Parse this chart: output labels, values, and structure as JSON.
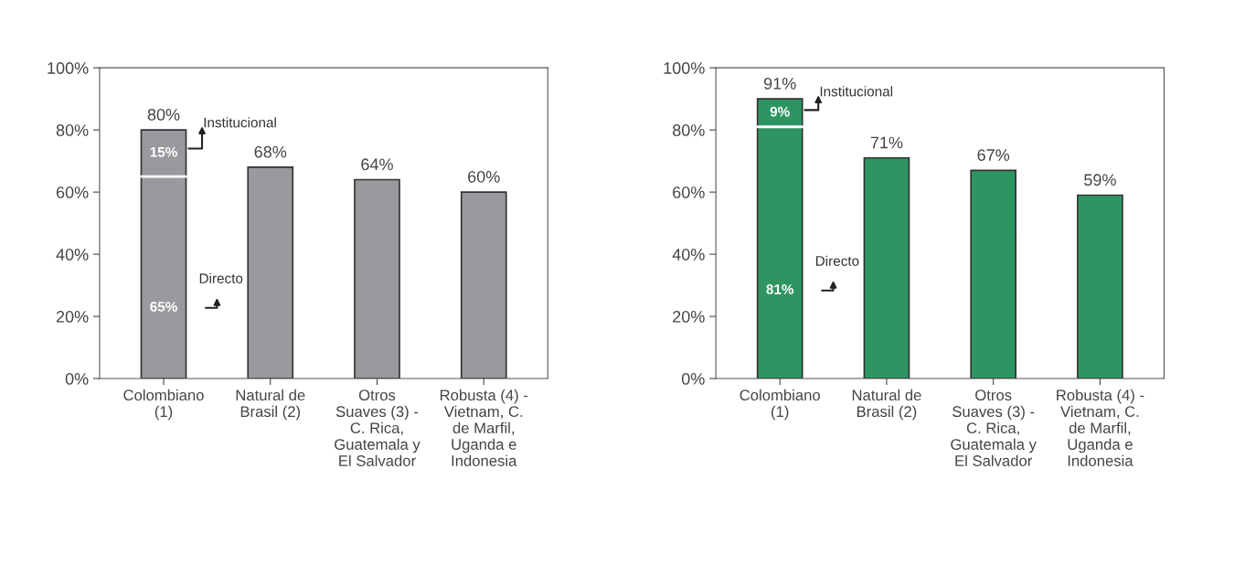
{
  "chart_data": [
    {
      "type": "bar",
      "stacked": true,
      "categories": [
        "Colombiano\n(1)",
        "Natural de\nBrasil (2)",
        "Otros\nSuaves (3) -\nC. Rica,\nGuatemala y\nEl Salvador",
        "Robusta (4) -\nVietnam, C.\nde Marfil,\nUganda e\nIndonesia"
      ],
      "series": [
        {
          "name": "Directo",
          "color": "#9a9a9e",
          "values": [
            65,
            68,
            64,
            60
          ],
          "value_labels": [
            "65%",
            null,
            null,
            null
          ]
        },
        {
          "name": "Institucional",
          "color": "#9a9a9e",
          "values": [
            15,
            null,
            null,
            null
          ],
          "value_labels": [
            "15%",
            null,
            null,
            null
          ]
        }
      ],
      "totals": [
        "80%",
        "68%",
        "64%",
        "60%"
      ],
      "ylim": [
        0,
        100
      ],
      "yticks": [
        {
          "value": 0,
          "label": "0%"
        },
        {
          "value": 20,
          "label": "20%"
        },
        {
          "value": 40,
          "label": "40%"
        },
        {
          "value": 60,
          "label": "60%"
        },
        {
          "value": 80,
          "label": "80%"
        },
        {
          "value": 100,
          "label": "100%"
        }
      ],
      "grid": false,
      "legend": false
    },
    {
      "type": "bar",
      "stacked": true,
      "categories": [
        "Colombiano\n(1)",
        "Natural de\nBrasil (2)",
        "Otros\nSuaves (3) -\nC. Rica,\nGuatemala y\nEl Salvador",
        "Robusta (4) -\nVietnam, C.\nde Marfil,\nUganda e\nIndonesia"
      ],
      "series": [
        {
          "name": "Directo",
          "color": "#2e9562",
          "values": [
            81,
            71,
            67,
            59
          ],
          "value_labels": [
            "81%",
            null,
            null,
            null
          ]
        },
        {
          "name": "Institucional",
          "color": "#2e9562",
          "values": [
            9,
            null,
            null,
            null
          ],
          "value_labels": [
            "9%",
            null,
            null,
            null
          ]
        }
      ],
      "totals": [
        "91%",
        "71%",
        "67%",
        "59%"
      ],
      "ylim": [
        0,
        100
      ],
      "yticks": [
        {
          "value": 0,
          "label": "0%"
        },
        {
          "value": 20,
          "label": "20%"
        },
        {
          "value": 40,
          "label": "40%"
        },
        {
          "value": 60,
          "label": "60%"
        },
        {
          "value": 80,
          "label": "80%"
        },
        {
          "value": 100,
          "label": "100%"
        }
      ],
      "grid": false,
      "legend": false
    }
  ]
}
